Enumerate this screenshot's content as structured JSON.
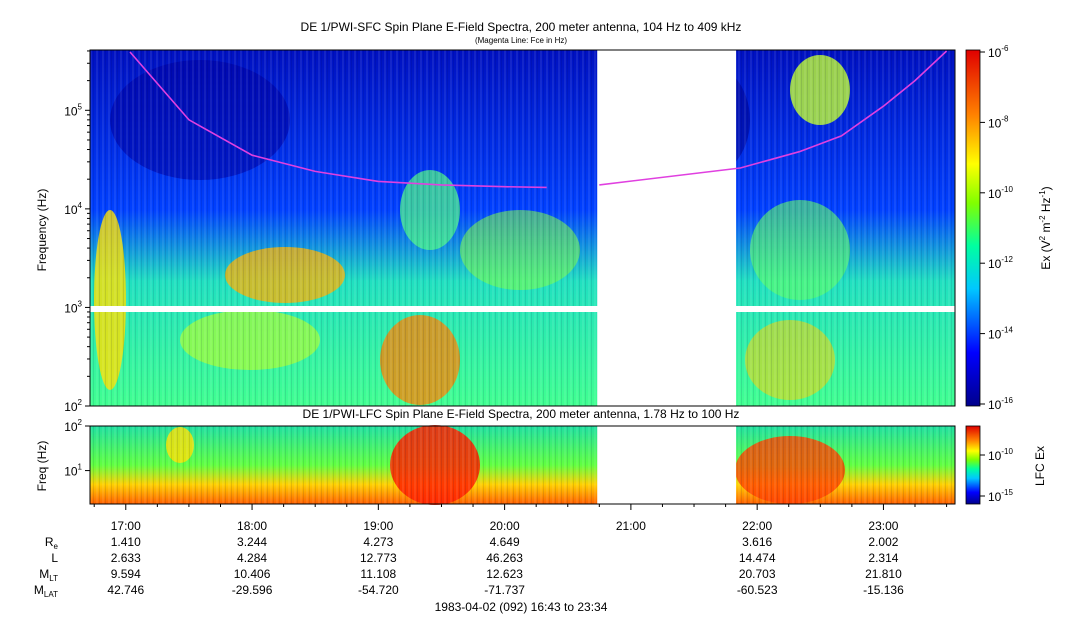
{
  "chart_data": [
    {
      "type": "heatmap",
      "title": "DE 1/PWI-SFC  Spin Plane E-Field Spectra, 200 meter antenna, 104 Hz to 409 kHz",
      "subtitle": "(Magenta Line: Fce in Hz)",
      "ylabel": "Frequency (Hz)",
      "yscale": "log",
      "ylim": [
        100,
        409000
      ],
      "yticks": [
        {
          "base": "10",
          "exp": "2"
        },
        {
          "base": "10",
          "exp": "3"
        },
        {
          "base": "10",
          "exp": "4"
        },
        {
          "base": "10",
          "exp": "5"
        }
      ],
      "data_gap": [
        "20:44",
        "21:50"
      ],
      "fce_line": {
        "color": "#e040e0",
        "x": [
          "17:02",
          "17:30",
          "18:00",
          "18:30",
          "19:00",
          "19:30",
          "20:00",
          "20:20",
          "20:45",
          "21:52",
          "22:20",
          "22:40",
          "23:00",
          "23:15",
          "23:30"
        ],
        "y": [
          390000,
          80000,
          35000,
          24000,
          19000,
          17500,
          16800,
          16500,
          17500,
          26000,
          38000,
          55000,
          110000,
          200000,
          400000
        ]
      },
      "colorbar": {
        "label_main": "Ex (V",
        "label_exp1": "2",
        "label_mid": " m",
        "label_exp2": "-2",
        "label_mid2": " Hz",
        "label_exp3": "-1",
        "label_end": ")",
        "ticks": [
          {
            "base": "10",
            "exp": "-6"
          },
          {
            "base": "10",
            "exp": "-8"
          },
          {
            "base": "10",
            "exp": "-10"
          },
          {
            "base": "10",
            "exp": "-12"
          },
          {
            "base": "10",
            "exp": "-14"
          },
          {
            "base": "10",
            "exp": "-16"
          }
        ]
      }
    },
    {
      "type": "heatmap",
      "title": "DE 1/PWI-LFC  Spin Plane E-Field Spectra, 200 meter antenna, 1.78 Hz to 100 Hz",
      "ylabel": "Freq (Hz)",
      "yscale": "log",
      "ylim": [
        1.78,
        100
      ],
      "yticks": [
        {
          "base": "10",
          "exp": "1"
        },
        {
          "base": "10",
          "exp": "2"
        }
      ],
      "data_gap": [
        "20:44",
        "21:50"
      ],
      "colorbar": {
        "label": "LFC Ex",
        "ticks": [
          {
            "base": "10",
            "exp": "-10"
          },
          {
            "base": "10",
            "exp": "-15"
          }
        ]
      }
    }
  ],
  "time_axis": {
    "ticks": [
      "17:00",
      "18:00",
      "19:00",
      "20:00",
      "21:00",
      "22:00",
      "23:00"
    ],
    "range": [
      "16:43",
      "23:34"
    ],
    "footer": "1983-04-02 (092) 16:43 to 23:34"
  },
  "ephemeris": {
    "rows": [
      {
        "label": "R",
        "sub": "e",
        "values": [
          "1.410",
          "3.244",
          "4.273",
          "4.649",
          "",
          "3.616",
          "2.002"
        ]
      },
      {
        "label": "L",
        "sub": "",
        "values": [
          "2.633",
          "4.284",
          "12.773",
          "46.263",
          "",
          "14.474",
          "2.314"
        ]
      },
      {
        "label": "M",
        "sub": "LT",
        "values": [
          "9.594",
          "10.406",
          "11.108",
          "12.623",
          "",
          "20.703",
          "21.810"
        ]
      },
      {
        "label": "M",
        "sub": "LAT",
        "values": [
          "42.746",
          "-29.596",
          "-54.720",
          "-71.737",
          "",
          "-60.523",
          "-15.136"
        ]
      }
    ]
  }
}
